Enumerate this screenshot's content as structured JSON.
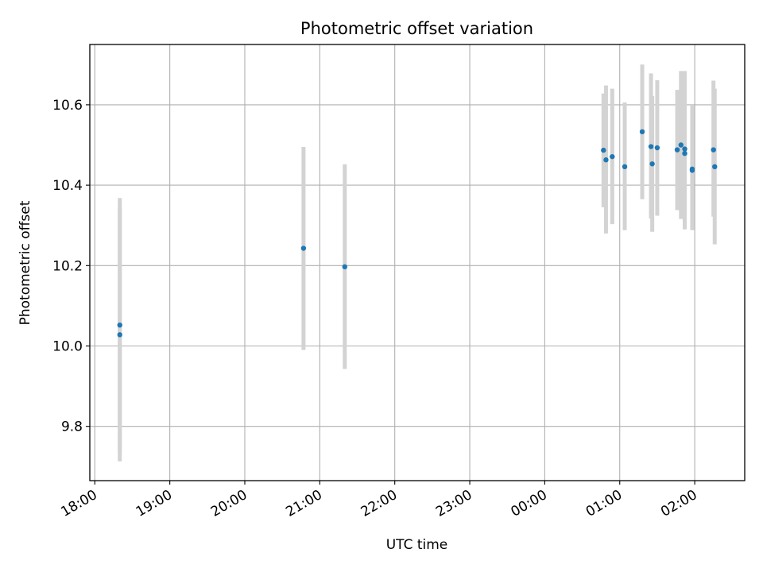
{
  "chart_data": {
    "type": "scatter",
    "title": "Photometric offset variation",
    "xlabel": "UTC time",
    "ylabel": "Photometric offset",
    "grid": true,
    "legend": "none",
    "xlim": [
      "17:56",
      "02:40"
    ],
    "ylim": [
      9.665,
      10.75
    ],
    "x_ticks": [
      "18:00",
      "19:00",
      "20:00",
      "21:00",
      "22:00",
      "23:00",
      "00:00",
      "01:00",
      "02:00"
    ],
    "y_ticks": [
      "9.8",
      "10.0",
      "10.2",
      "10.4",
      "10.6"
    ],
    "x_tick_values": [
      0,
      60,
      120,
      180,
      240,
      300,
      360,
      420,
      480
    ],
    "y_tick_values": [
      9.8,
      10.0,
      10.2,
      10.4,
      10.6
    ],
    "colors": {
      "marker": "#1f77b4",
      "errorbar": "#d3d3d3",
      "grid": "#b0b0b0"
    },
    "series": [
      {
        "points": [
          {
            "x": "18:20",
            "y": 10.052,
            "ylow": 9.735,
            "yhigh": 10.368
          },
          {
            "x": "18:20",
            "y": 10.028,
            "ylow": 9.713,
            "yhigh": 10.343
          },
          {
            "x": "20:47",
            "y": 10.243,
            "ylow": 9.99,
            "yhigh": 10.495
          },
          {
            "x": "21:20",
            "y": 10.197,
            "ylow": 9.943,
            "yhigh": 10.452
          },
          {
            "x": "00:47",
            "y": 10.487,
            "ylow": 10.345,
            "yhigh": 10.628
          },
          {
            "x": "00:49",
            "y": 10.463,
            "ylow": 10.28,
            "yhigh": 10.648
          },
          {
            "x": "00:54",
            "y": 10.471,
            "ylow": 10.303,
            "yhigh": 10.64
          },
          {
            "x": "01:04",
            "y": 10.446,
            "ylow": 10.288,
            "yhigh": 10.606
          },
          {
            "x": "01:18",
            "y": 10.533,
            "ylow": 10.365,
            "yhigh": 10.7
          },
          {
            "x": "01:25",
            "y": 10.496,
            "ylow": 10.317,
            "yhigh": 10.678
          },
          {
            "x": "01:26",
            "y": 10.453,
            "ylow": 10.284,
            "yhigh": 10.622
          },
          {
            "x": "01:30",
            "y": 10.493,
            "ylow": 10.324,
            "yhigh": 10.661
          },
          {
            "x": "01:46",
            "y": 10.488,
            "ylow": 10.338,
            "yhigh": 10.637
          },
          {
            "x": "01:49",
            "y": 10.5,
            "ylow": 10.316,
            "yhigh": 10.684
          },
          {
            "x": "01:52",
            "y": 10.479,
            "ylow": 10.29,
            "yhigh": 10.684
          },
          {
            "x": "01:52",
            "y": 10.49,
            "ylow": 10.305,
            "yhigh": 10.675
          },
          {
            "x": "01:58",
            "y": 10.44,
            "ylow": 10.288,
            "yhigh": 10.598
          },
          {
            "x": "01:58",
            "y": 10.437,
            "ylow": 10.29,
            "yhigh": 10.59
          },
          {
            "x": "02:15",
            "y": 10.488,
            "ylow": 10.322,
            "yhigh": 10.66
          },
          {
            "x": "02:16",
            "y": 10.446,
            "ylow": 10.253,
            "yhigh": 10.64
          }
        ]
      }
    ]
  }
}
